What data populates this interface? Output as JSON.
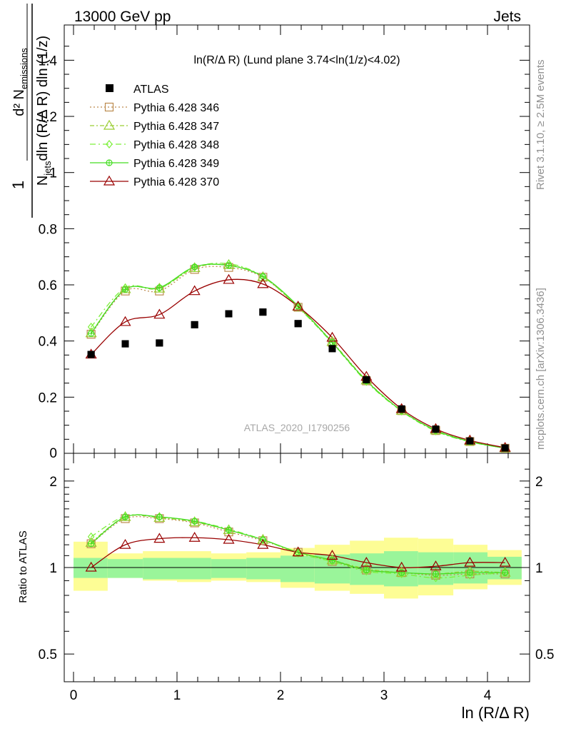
{
  "header": {
    "left": "13000 GeV pp",
    "right": "Jets"
  },
  "side_labels": {
    "rivet": "Rivet 3.1.10, ≥ 2.5M events",
    "mcplots": "mcplots.cern.ch [arXiv:1306.3436]"
  },
  "watermark": "ATLAS_2020_I1790256",
  "colors": {
    "data": "#000000",
    "s346": "#bc8a4e",
    "s347": "#9acd32",
    "s348": "#7cf03a",
    "s349": "#44dd22",
    "s370": "#990000",
    "band_inner": "#9af59a",
    "band_outer": "#fdfd95"
  },
  "chart_data": [
    {
      "type": "line",
      "panel": "main",
      "title": "ln(R/Δ R) (Lund plane 3.74<ln(1/z)<4.02)",
      "ylabel_parts": {
        "num": "d² N",
        "num_sub": "emissions",
        "den": "N",
        "den_sub": "jets",
        "den_rest": "dln (R/Δ R) dln (1/z)",
        "one": "1"
      },
      "xlim": [
        -0.1,
        4.4
      ],
      "ylim": [
        0,
        1.5
      ],
      "yticks": [
        0.2,
        0.4,
        0.6,
        0.8,
        1,
        1.2,
        1.4
      ],
      "ytick_labels": [
        "0.2",
        "0.4",
        "0.6",
        "0.8",
        "1",
        "1.2",
        "1.4"
      ],
      "y_edge_label": "0",
      "legend_placement": "top-left",
      "x": [
        0.17,
        0.5,
        0.83,
        1.17,
        1.5,
        1.83,
        2.17,
        2.5,
        2.83,
        3.17,
        3.5,
        3.83,
        4.17
      ],
      "series": [
        {
          "name": "ATLAS",
          "kind": "data",
          "values": [
            0.352,
            0.39,
            0.393,
            0.458,
            0.497,
            0.503,
            0.462,
            0.373,
            0.262,
            0.158,
            0.086,
            0.044,
            0.019
          ]
        },
        {
          "name": "Pythia 6.428 346",
          "kind": "mc",
          "key": "s346",
          "marker": "square",
          "dash": "2,3",
          "values": [
            0.424,
            0.578,
            0.578,
            0.655,
            0.662,
            0.627,
            0.52,
            0.395,
            0.258,
            0.152,
            0.081,
            0.042,
            0.018
          ]
        },
        {
          "name": "Pythia 6.428 347",
          "kind": "mc",
          "key": "s347",
          "marker": "triangle",
          "dash": "6,3,2,3",
          "values": [
            0.428,
            0.585,
            0.587,
            0.66,
            0.671,
            0.628,
            0.522,
            0.397,
            0.26,
            0.152,
            0.082,
            0.043,
            0.018
          ]
        },
        {
          "name": "Pythia 6.428 348",
          "kind": "mc",
          "key": "s348",
          "marker": "diamond",
          "dash": "8,4,2,4",
          "values": [
            0.45,
            0.59,
            0.588,
            0.662,
            0.675,
            0.63,
            0.52,
            0.393,
            0.255,
            0.15,
            0.079,
            0.041,
            0.018
          ]
        },
        {
          "name": "Pythia 6.428 349",
          "kind": "mc",
          "key": "s349",
          "marker": "circle",
          "dash": "",
          "values": [
            0.427,
            0.584,
            0.59,
            0.664,
            0.669,
            0.63,
            0.525,
            0.395,
            0.258,
            0.152,
            0.082,
            0.042,
            0.018
          ]
        },
        {
          "name": "Pythia 6.428 370",
          "kind": "mc",
          "key": "s370",
          "marker": "triangle",
          "dash": "",
          "values": [
            0.352,
            0.468,
            0.494,
            0.578,
            0.618,
            0.603,
            0.523,
            0.412,
            0.273,
            0.158,
            0.087,
            0.046,
            0.02
          ]
        }
      ]
    },
    {
      "type": "line",
      "panel": "ratio",
      "ylabel": "Ratio to ATLAS",
      "xlabel": "ln (R/Δ R)",
      "xlim": [
        -0.1,
        4.4
      ],
      "xticks": [
        0,
        1,
        2,
        3,
        4
      ],
      "xtick_labels": [
        "0",
        "1",
        "2",
        "3",
        "4"
      ],
      "ylim": [
        0.34,
        2.3
      ],
      "yticks": [
        0.5,
        1,
        2
      ],
      "ytick_labels": [
        "0.5",
        "1",
        "2"
      ],
      "log_scale_y": true,
      "bands": {
        "edges": [
          0,
          0.33,
          0.67,
          1.0,
          1.33,
          1.67,
          2.0,
          2.33,
          2.67,
          3.0,
          3.33,
          3.67,
          4.0,
          4.33
        ],
        "inner": [
          [
            0.92,
            1.08
          ],
          [
            0.92,
            1.07
          ],
          [
            0.91,
            1.08
          ],
          [
            0.91,
            1.08
          ],
          [
            0.92,
            1.07
          ],
          [
            0.91,
            1.08
          ],
          [
            0.89,
            1.1
          ],
          [
            0.88,
            1.11
          ],
          [
            0.87,
            1.12
          ],
          [
            0.86,
            1.14
          ],
          [
            0.87,
            1.13
          ],
          [
            0.88,
            1.13
          ],
          [
            0.91,
            1.09
          ]
        ],
        "outer": [
          [
            0.83,
            1.23
          ],
          [
            0.92,
            1.12
          ],
          [
            0.9,
            1.14
          ],
          [
            0.89,
            1.14
          ],
          [
            0.9,
            1.12
          ],
          [
            0.89,
            1.13
          ],
          [
            0.85,
            1.17
          ],
          [
            0.83,
            1.2
          ],
          [
            0.81,
            1.24
          ],
          [
            0.78,
            1.27
          ],
          [
            0.8,
            1.26
          ],
          [
            0.84,
            1.2
          ],
          [
            0.87,
            1.15
          ]
        ]
      },
      "x": [
        0.17,
        0.5,
        0.83,
        1.17,
        1.5,
        1.83,
        2.17,
        2.5,
        2.83,
        3.17,
        3.5,
        3.83,
        4.17
      ],
      "series": [
        {
          "name": "Pythia 6.428 346",
          "key": "s346",
          "marker": "square",
          "dash": "2,3",
          "values": [
            1.21,
            1.48,
            1.48,
            1.43,
            1.33,
            1.24,
            1.13,
            1.05,
            0.98,
            0.96,
            0.94,
            0.95,
            0.95
          ]
        },
        {
          "name": "Pythia 6.428 347",
          "key": "s347",
          "marker": "triangle",
          "dash": "6,3,2,3",
          "values": [
            1.22,
            1.5,
            1.49,
            1.44,
            1.35,
            1.25,
            1.13,
            1.06,
            0.99,
            0.96,
            0.95,
            0.97,
            0.96
          ]
        },
        {
          "name": "Pythia 6.428 348",
          "key": "s348",
          "marker": "diamond",
          "dash": "8,4,2,4",
          "values": [
            1.28,
            1.51,
            1.5,
            1.45,
            1.36,
            1.25,
            1.12,
            1.05,
            0.97,
            0.95,
            0.92,
            0.94,
            0.96
          ]
        },
        {
          "name": "Pythia 6.428 349",
          "key": "s349",
          "marker": "circle",
          "dash": "",
          "values": [
            1.21,
            1.5,
            1.5,
            1.45,
            1.35,
            1.25,
            1.13,
            1.06,
            0.98,
            0.96,
            0.95,
            0.96,
            0.96
          ]
        },
        {
          "name": "Pythia 6.428 370",
          "key": "s370",
          "marker": "triangle",
          "dash": "",
          "values": [
            1.0,
            1.2,
            1.26,
            1.27,
            1.25,
            1.2,
            1.13,
            1.1,
            1.04,
            1.0,
            1.01,
            1.04,
            1.04
          ]
        }
      ],
      "reference_line": 1
    }
  ]
}
